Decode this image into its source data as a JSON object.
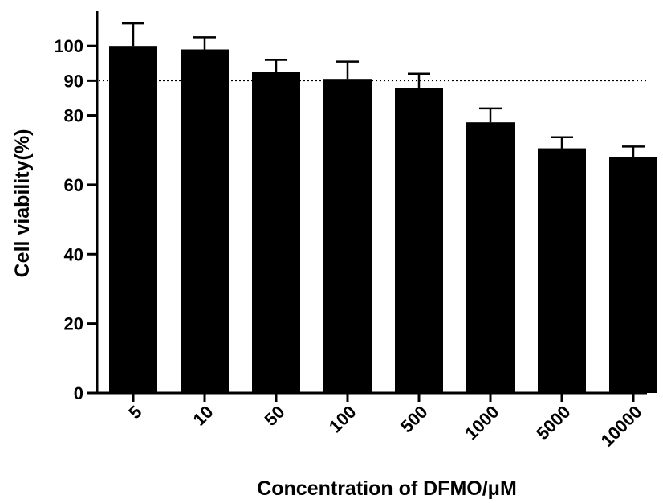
{
  "chart_data": {
    "type": "bar",
    "title": "",
    "xlabel": "Concentration of DFMO/μM",
    "ylabel": "Cell viability(%)",
    "categories": [
      "5",
      "10",
      "50",
      "100",
      "500",
      "1000",
      "5000",
      "10000"
    ],
    "values": [
      100,
      99,
      92.5,
      90.5,
      88,
      78,
      70.5,
      68
    ],
    "errors": [
      6.5,
      3.5,
      3.5,
      5,
      4,
      4,
      3.2,
      3
    ],
    "yticks": [
      0,
      20,
      40,
      60,
      80,
      90,
      100
    ],
    "ylim": [
      0,
      110
    ],
    "reference_line": {
      "y": 90,
      "style": "dotted"
    },
    "bar_color": "#000000",
    "grid": false,
    "legend": "none"
  }
}
